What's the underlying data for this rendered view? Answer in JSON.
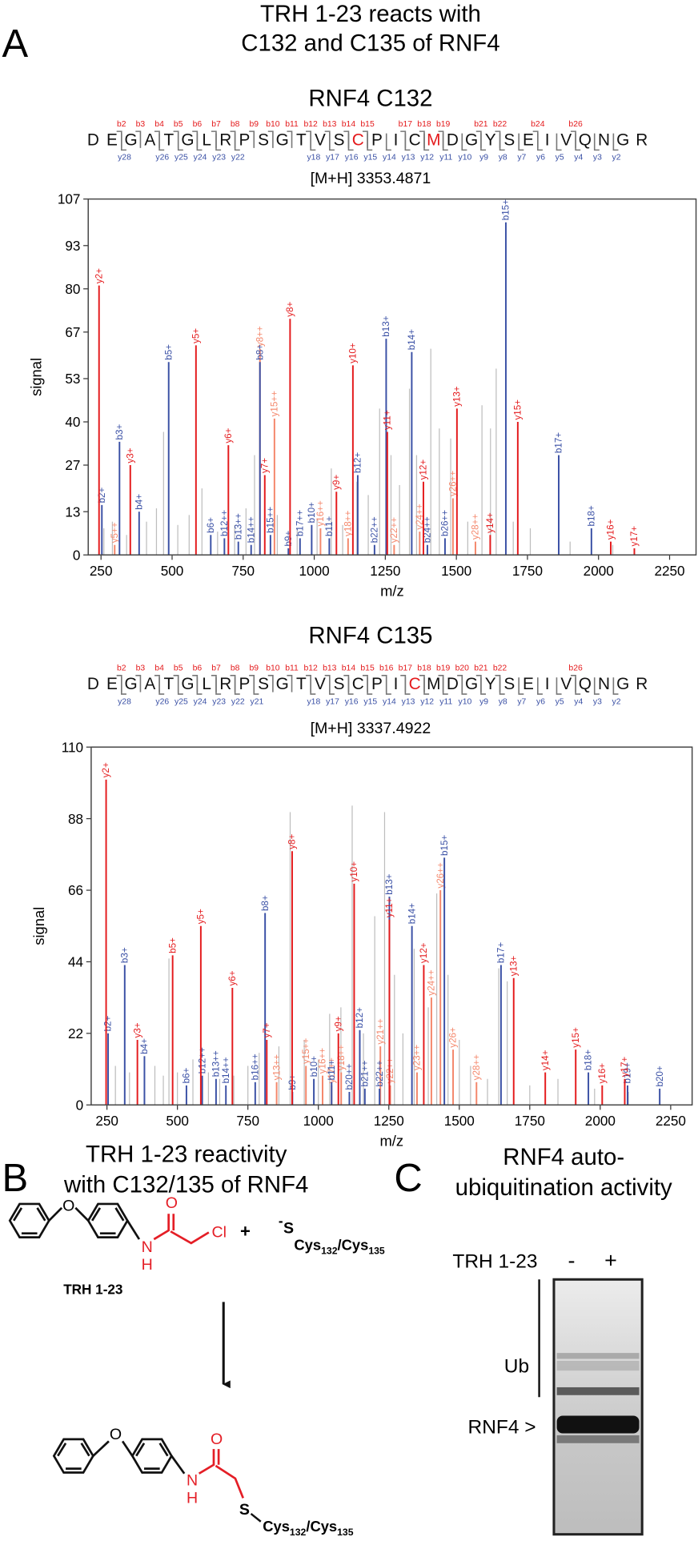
{
  "panel_a": {
    "label": "A",
    "title_lines": [
      "TRH 1-23 reacts with",
      "C132 and C135 of RNF4"
    ]
  },
  "chart_data": [
    {
      "type": "spectrum",
      "title": "RNF4 C132",
      "precursor": "[M+H] 3353.4871",
      "sequence": [
        "D",
        "E",
        "G",
        "A",
        "T",
        "G",
        "L",
        "R",
        "P",
        "S",
        "G",
        "T",
        "V",
        "S",
        "C",
        "P",
        "I",
        "C",
        "M",
        "D",
        "G",
        "Y",
        "S",
        "E",
        "I",
        "V",
        "Q",
        "N",
        "G",
        "R"
      ],
      "highlight": [
        14,
        18
      ],
      "highlight_color": "#e41a1c",
      "b_ions": [
        "b2",
        "b3",
        "b4",
        "b5",
        "b6",
        "b7",
        "b8",
        "b9",
        "b10",
        "b11",
        "b12",
        "b13",
        "b14",
        "b15",
        "b17",
        "b18",
        "b19",
        "b21",
        "b22",
        "b24",
        "b26"
      ],
      "y_ions": [
        "y28",
        "y26",
        "y25",
        "y24",
        "y23",
        "y22",
        "y18",
        "y17",
        "y16",
        "y15",
        "y14",
        "y13",
        "y12",
        "y11",
        "y10",
        "y9",
        "y8",
        "y7",
        "y6",
        "y5",
        "y4",
        "y3",
        "y2"
      ],
      "xlabel": "m/z",
      "ylabel": "signal",
      "xlim": [
        205,
        2343
      ],
      "ylim": [
        0,
        107
      ],
      "xticks": [
        250,
        500,
        750,
        1000,
        1250,
        1500,
        1750,
        2000,
        2250
      ],
      "yticks": [
        0,
        13,
        27,
        40,
        53,
        67,
        80,
        93,
        107
      ],
      "series": [
        {
          "color": "#bdbdbd",
          "x": [
            260,
            290,
            340,
            410,
            445,
            470,
            520,
            560,
            605,
            660,
            720,
            760,
            790,
            870,
            940,
            1010,
            1060,
            1100,
            1150,
            1190,
            1230,
            1270,
            1300,
            1335,
            1360,
            1410,
            1440,
            1480,
            1540,
            1590,
            1620,
            1640,
            1700,
            1760,
            1900,
            2050
          ],
          "values": [
            8,
            10,
            6,
            10,
            14,
            37,
            9,
            12,
            20,
            7,
            9,
            14,
            30,
            12,
            8,
            11,
            26,
            9,
            22,
            18,
            44,
            30,
            21,
            50,
            30,
            62,
            38,
            35,
            10,
            45,
            38,
            56,
            10,
            8,
            4,
            3
          ]
        },
        {
          "color": "#f4866a",
          "x": [
            298,
            809,
            860,
            1022,
            1119,
            1281,
            1371,
            1488,
            1567
          ],
          "values": [
            3,
            62,
            41,
            8,
            5,
            3,
            7,
            17,
            4
          ],
          "peak_labels": [
            "y5++",
            "y8++",
            "y15++",
            "y16++",
            "y18++",
            "y22++",
            "y24++",
            "y26++",
            "y28++"
          ]
        },
        {
          "color": "#3a50a5",
          "x": [
            253,
            315,
            384,
            488,
            636,
            684,
            733,
            778,
            809,
            846,
            909,
            950,
            991,
            1053,
            1153,
            1212,
            1253,
            1343,
            1398,
            1460,
            1674,
            1860,
            1975
          ],
          "values": [
            15,
            34,
            13,
            58,
            6,
            5,
            4,
            3,
            58,
            6,
            2,
            5,
            9,
            5,
            24,
            3,
            65,
            61,
            3,
            5,
            100,
            30,
            8
          ],
          "peak_labels": [
            "b2+",
            "b3+",
            "b4+",
            "b5+",
            "b6+",
            "b12++",
            "b13++",
            "b14++",
            "b8+",
            "b15++",
            "b9+",
            "b17++",
            "b10+",
            "b11+",
            "b12+",
            "b22++",
            "b13+",
            "b14+",
            "b24++",
            "b26++",
            "b15+",
            "b17+",
            "b18+"
          ]
        },
        {
          "color": "#e41a1c",
          "x": [
            243,
            353,
            584,
            698,
            826,
            915,
            1078,
            1136,
            1257,
            1384,
            1502,
            1619,
            1716,
            2043,
            2126
          ],
          "values": [
            81,
            27,
            63,
            33,
            24,
            71,
            19,
            57,
            37,
            22,
            44,
            6,
            40,
            4,
            2
          ],
          "peak_labels": [
            "y2+",
            "y3+",
            "y5+",
            "y6+",
            "y7+",
            "y8+",
            "y9+",
            "y10+",
            "y11+",
            "y12+",
            "y13+",
            "y14+",
            "y15+",
            "y16+",
            "y17+"
          ]
        }
      ]
    },
    {
      "type": "spectrum",
      "title": "RNF4 C135",
      "precursor": "[M+H] 3337.4922",
      "sequence": [
        "D",
        "E",
        "G",
        "A",
        "T",
        "G",
        "L",
        "R",
        "P",
        "S",
        "G",
        "T",
        "V",
        "S",
        "C",
        "P",
        "I",
        "C",
        "M",
        "D",
        "G",
        "Y",
        "S",
        "E",
        "I",
        "V",
        "Q",
        "N",
        "G",
        "R"
      ],
      "highlight": [
        17
      ],
      "highlight_color": "#e41a1c",
      "b_ions": [
        "b2",
        "b3",
        "b4",
        "b5",
        "b6",
        "b7",
        "b8",
        "b9",
        "b10",
        "b11",
        "b12",
        "b13",
        "b14",
        "b15",
        "b16",
        "b17",
        "b18",
        "b19",
        "b20",
        "b21",
        "b22",
        "b26"
      ],
      "y_ions": [
        "y28",
        "y26",
        "y25",
        "y24",
        "y23",
        "y22",
        "y21",
        "y18",
        "y17",
        "y16",
        "y15",
        "y14",
        "y13",
        "y12",
        "y11",
        "y10",
        "y9",
        "y8",
        "y7",
        "y6",
        "y5",
        "y4",
        "y3",
        "y2"
      ],
      "xlabel": "m/z",
      "ylabel": "signal",
      "xlim": [
        194,
        2326
      ],
      "ylim": [
        0,
        110
      ],
      "xticks": [
        250,
        500,
        750,
        1000,
        1250,
        1500,
        1750,
        2000,
        2250
      ],
      "yticks": [
        0,
        22,
        44,
        66,
        88,
        110
      ],
      "series": [
        {
          "color": "#bdbdbd",
          "x": [
            255,
            280,
            330,
            420,
            450,
            470,
            500,
            555,
            610,
            650,
            700,
            750,
            790,
            860,
            900,
            950,
            1000,
            1040,
            1080,
            1120,
            1160,
            1200,
            1235,
            1270,
            1300,
            1340,
            1390,
            1420,
            1460,
            1500,
            1540,
            1600,
            1640,
            1670,
            1750,
            1850,
            1980,
            2100
          ],
          "values": [
            15,
            12,
            10,
            12,
            9,
            45,
            10,
            14,
            10,
            8,
            9,
            12,
            16,
            18,
            90,
            20,
            14,
            28,
            30,
            92,
            22,
            58,
            90,
            40,
            22,
            48,
            30,
            65,
            40,
            20,
            12,
            8,
            42,
            38,
            6,
            8,
            5,
            4
          ]
        },
        {
          "color": "#f4866a",
          "x": [
            852,
            956,
            1015,
            1047,
            1081,
            1220,
            1255,
            1350,
            1401,
            1433,
            1478,
            1561
          ],
          "values": [
            7,
            12,
            9,
            6,
            10,
            18,
            6,
            10,
            33,
            66,
            17,
            7
          ],
          "peak_labels": [
            "y13++",
            "y15++",
            "y16++",
            "y17++",
            "y18++",
            "y21++",
            "y22++",
            "y23++",
            "y24++",
            "y26++",
            "y26+",
            "y28++"
          ]
        },
        {
          "color": "#3a50a5",
          "x": [
            254,
            313,
            383,
            532,
            588,
            637,
            672,
            776,
            811,
            908,
            984,
            1047,
            1110,
            1147,
            1165,
            1217,
            1252,
            1332,
            1447,
            1648,
            1958,
            2097,
            2211
          ],
          "values": [
            22,
            43,
            15,
            6,
            9,
            8,
            6,
            7,
            59,
            4,
            8,
            7,
            4,
            23,
            5,
            5,
            64,
            55,
            76,
            43,
            10,
            6,
            5
          ],
          "peak_labels": [
            "b2+",
            "b3+",
            "b4+",
            "b6+",
            "b12++",
            "b13++",
            "b14++",
            "b16++",
            "b8+",
            "b9+",
            "b10+",
            "b11+",
            "b20++",
            "b12+",
            "b21++",
            "b22++",
            "b13+",
            "b14+",
            "b15+",
            "b17+",
            "b18+",
            "b19+",
            "b20+"
          ]
        },
        {
          "color": "#e41a1c",
          "x": [
            247,
            358,
            483,
            583,
            695,
            817,
            907,
            1071,
            1127,
            1252,
            1374,
            1693,
            1805,
            1913,
            2007,
            2087
          ],
          "values": [
            100,
            20,
            46,
            55,
            36,
            20,
            78,
            22,
            68,
            57,
            43,
            39,
            10,
            17,
            6,
            8
          ],
          "peak_labels": [
            "y2+",
            "y3+",
            "b5+",
            "y5+",
            "y6+",
            "y7+",
            "y8+",
            "y9+",
            "y10+",
            "y11+",
            "y12+",
            "y13+",
            "y14+",
            "y15+",
            "y16+",
            "y17+"
          ]
        }
      ]
    }
  ],
  "panel_b": {
    "label": "B",
    "title_lines": [
      "TRH 1-23 reactivity",
      "with C132/135 of RNF4"
    ],
    "compound": "TRH 1-23",
    "oxygen": "O",
    "nitrogen": "N",
    "hydrogen": "H",
    "chlorine": "Cl",
    "sulfur": "S",
    "plus": "+",
    "charge": "-",
    "cys": "Cys",
    "site1": "132",
    "separator": "/",
    "site2": "135"
  },
  "panel_c": {
    "label": "C",
    "title_lines": [
      "RNF4 auto-",
      "ubiquitination activity"
    ],
    "treatment": "TRH 1-23",
    "lanes": [
      "-",
      "+"
    ],
    "ub": "Ub",
    "rnf4": "RNF4 >"
  }
}
